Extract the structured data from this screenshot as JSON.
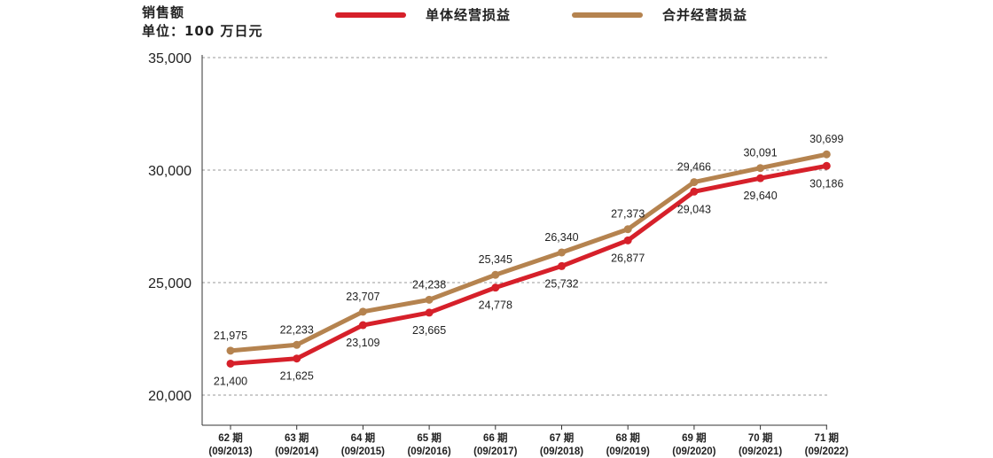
{
  "chart_data": {
    "type": "line",
    "ylabel": "销售额",
    "yunit": "单位：100 万日元",
    "ylim": [
      20000,
      35000
    ],
    "yticks": [
      "20,000",
      "25,000",
      "30,000",
      "35,000"
    ],
    "ytick_values": [
      20000,
      25000,
      30000,
      35000
    ],
    "grid": true,
    "legend_position": "top",
    "categories": [
      {
        "period": "62 期",
        "date": "(09/2013)"
      },
      {
        "period": "63 期",
        "date": "(09/2014)"
      },
      {
        "period": "64 期",
        "date": "(09/2015)"
      },
      {
        "period": "65 期",
        "date": "(09/2016)"
      },
      {
        "period": "66 期",
        "date": "(09/2017)"
      },
      {
        "period": "67 期",
        "date": "(09/2018)"
      },
      {
        "period": "68 期",
        "date": "(09/2019)"
      },
      {
        "period": "69 期",
        "date": "(09/2020)"
      },
      {
        "period": "70 期",
        "date": "(09/2021)"
      },
      {
        "period": "71 期",
        "date": "(09/2022)"
      }
    ],
    "series": [
      {
        "name": "单体经营损益",
        "color": "#d6202a",
        "values": [
          21400,
          21625,
          23109,
          23665,
          24778,
          25732,
          26877,
          29043,
          29640,
          30186
        ],
        "labels": [
          "21,400",
          "21,625",
          "23,109",
          "23,665",
          "24,778",
          "25,732",
          "26,877",
          "29,043",
          "29,640",
          "30,186"
        ]
      },
      {
        "name": "合并经营损益",
        "color": "#b5834f",
        "values": [
          21975,
          22233,
          23707,
          24238,
          25345,
          26340,
          27373,
          29466,
          30091,
          30699
        ],
        "labels": [
          "21,975",
          "22,233",
          "23,707",
          "24,238",
          "25,345",
          "26,340",
          "27,373",
          "29,466",
          "30,091",
          "30,699"
        ]
      }
    ]
  }
}
